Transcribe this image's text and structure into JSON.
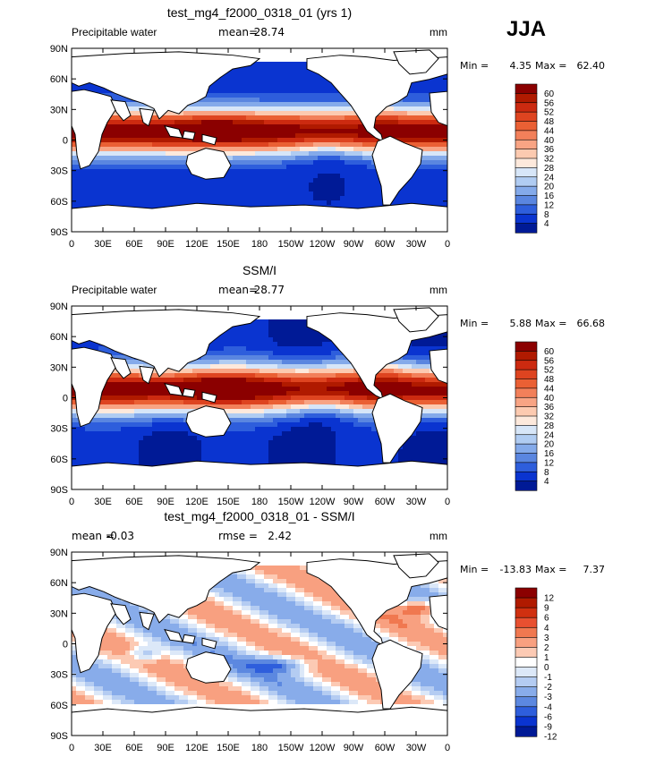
{
  "season": "JJA",
  "panels": [
    {
      "title": "test_mg4_f2000_0318_01 (yrs 1)",
      "left_label": "Precipitable water",
      "mean_label": "mean=",
      "mean_value": "28.74",
      "rmse_label": "",
      "rmse_value": "",
      "units": "mm",
      "min_label": "Min =",
      "min_value": "4.35",
      "max_label": "Max =",
      "max_value": "62.40",
      "colorbar_labels": [
        "60",
        "56",
        "52",
        "48",
        "44",
        "40",
        "36",
        "32",
        "28",
        "24",
        "20",
        "16",
        "12",
        "8",
        "4"
      ],
      "colorbar_colors": [
        "#8b0000",
        "#b01a00",
        "#cc2a10",
        "#de4420",
        "#ea6034",
        "#f2805a",
        "#f8a484",
        "#fccab0",
        "#fde9dc",
        "#d7e6f8",
        "#b0ccf2",
        "#84aaea",
        "#5a86e0",
        "#2e5edc",
        "#0a34d0",
        "#001a96"
      ]
    },
    {
      "title": "SSM/I",
      "left_label": "Precipitable water",
      "mean_label": "mean=",
      "mean_value": "28.77",
      "rmse_label": "",
      "rmse_value": "",
      "units": "mm",
      "min_label": "Min =",
      "min_value": "5.88",
      "max_label": "Max =",
      "max_value": "66.68",
      "colorbar_labels": [
        "60",
        "56",
        "52",
        "48",
        "44",
        "40",
        "36",
        "32",
        "28",
        "24",
        "20",
        "16",
        "12",
        "8",
        "4"
      ],
      "colorbar_colors": [
        "#8b0000",
        "#b01a00",
        "#cc2a10",
        "#de4420",
        "#ea6034",
        "#f2805a",
        "#f8a484",
        "#fccab0",
        "#fde9dc",
        "#d7e6f8",
        "#b0ccf2",
        "#84aaea",
        "#5a86e0",
        "#2e5edc",
        "#0a34d0",
        "#001a96"
      ]
    },
    {
      "title": "test_mg4_f2000_0318_01 - SSM/I",
      "left_label": "",
      "mean_label": "mean =",
      "mean_value": "-0.03",
      "rmse_label": "rmse =",
      "rmse_value": "2.42",
      "units": "mm",
      "min_label": "Min =",
      "min_value": "-13.83",
      "max_label": "Max =",
      "max_value": "7.37",
      "colorbar_labels": [
        "12",
        "9",
        "6",
        "4",
        "3",
        "2",
        "1",
        "0",
        "-1",
        "-2",
        "-3",
        "-4",
        "-6",
        "-9",
        "-12"
      ],
      "colorbar_colors": [
        "#8b0000",
        "#b01a00",
        "#d03010",
        "#e85030",
        "#f07850",
        "#f8a080",
        "#fccab4",
        "#ffffff",
        "#dce8f8",
        "#b4ccf2",
        "#88acea",
        "#5c88e0",
        "#2e5edc",
        "#0a34d0",
        "#001a96"
      ]
    }
  ],
  "chart_data": [
    {
      "type": "heatmap",
      "title": "test_mg4_f2000_0318_01 (yrs 1)",
      "variable": "Precipitable water",
      "units": "mm",
      "mean": 28.74,
      "min": 4.35,
      "max": 62.4,
      "x_ticks": [
        "0",
        "30E",
        "60E",
        "90E",
        "120E",
        "150E",
        "180",
        "150W",
        "120W",
        "90W",
        "60W",
        "30W",
        "0"
      ],
      "y_ticks": [
        "90N",
        "60N",
        "30N",
        "0",
        "30S",
        "60S",
        "90S"
      ],
      "contour_levels": [
        4,
        8,
        12,
        16,
        20,
        24,
        28,
        32,
        36,
        40,
        44,
        48,
        52,
        56,
        60
      ]
    },
    {
      "type": "heatmap",
      "title": "SSM/I",
      "variable": "Precipitable water",
      "units": "mm",
      "mean": 28.77,
      "min": 5.88,
      "max": 66.68,
      "x_ticks": [
        "0",
        "30E",
        "60E",
        "90E",
        "120E",
        "150E",
        "180",
        "150W",
        "120W",
        "90W",
        "60W",
        "30W",
        "0"
      ],
      "y_ticks": [
        "90N",
        "60N",
        "30N",
        "0",
        "30S",
        "60S",
        "90S"
      ],
      "contour_levels": [
        4,
        8,
        12,
        16,
        20,
        24,
        28,
        32,
        36,
        40,
        44,
        48,
        52,
        56,
        60
      ]
    },
    {
      "type": "heatmap",
      "title": "test_mg4_f2000_0318_01 - SSM/I",
      "units": "mm",
      "mean": -0.03,
      "rmse": 2.42,
      "min": -13.83,
      "max": 7.37,
      "x_ticks": [
        "0",
        "30E",
        "60E",
        "90E",
        "120E",
        "150E",
        "180",
        "150W",
        "120W",
        "90W",
        "60W",
        "30W",
        "0"
      ],
      "y_ticks": [
        "90N",
        "60N",
        "30N",
        "0",
        "30S",
        "60S",
        "90S"
      ],
      "contour_levels": [
        -12,
        -9,
        -6,
        -4,
        -3,
        -2,
        -1,
        0,
        1,
        2,
        3,
        4,
        6,
        9,
        12
      ]
    }
  ]
}
